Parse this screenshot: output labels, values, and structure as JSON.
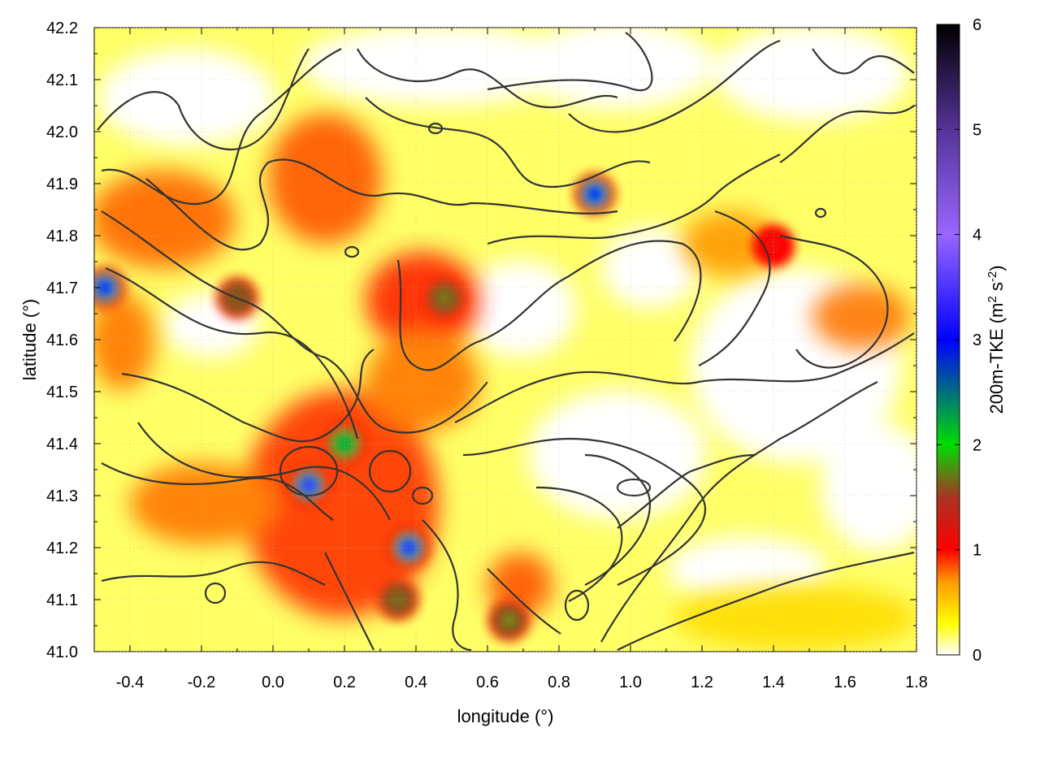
{
  "chart_data": {
    "type": "heatmap",
    "title": "",
    "xlabel": "longitude (°)",
    "ylabel": "latitude (°)",
    "colorbar_label": "200m-TKE (m² s⁻²)",
    "colorbar_label_parts": {
      "main": "200m-TKE (m",
      "sup1": "2",
      "mid": " s",
      "sup2": "-2",
      "end": ")"
    },
    "xlim": [
      -0.5,
      1.8
    ],
    "ylim": [
      41.0,
      42.2
    ],
    "clim": [
      0,
      6
    ],
    "x_ticks": [
      -0.4,
      -0.2,
      0.0,
      0.2,
      0.4,
      0.6,
      0.8,
      1.0,
      1.2,
      1.4,
      1.6,
      1.8
    ],
    "x_tick_labels": [
      "-0.4",
      "-0.2",
      "0.0",
      "0.2",
      "0.4",
      "0.6",
      "0.8",
      "1.0",
      "1.2",
      "1.4",
      "1.6",
      "1.8"
    ],
    "y_ticks": [
      41.0,
      41.1,
      41.2,
      41.3,
      41.4,
      41.5,
      41.6,
      41.7,
      41.8,
      41.9,
      42.0,
      42.1,
      42.2
    ],
    "y_tick_labels": [
      "41.0",
      "41.1",
      "41.2",
      "41.3",
      "41.4",
      "41.5",
      "41.6",
      "41.7",
      "41.8",
      "41.9",
      "42.0",
      "42.1",
      "42.2"
    ],
    "colorbar_ticks": [
      0,
      1,
      2,
      3,
      4,
      5,
      6
    ],
    "colorbar_tick_labels": [
      "0",
      "1",
      "2",
      "3",
      "4",
      "5",
      "6"
    ],
    "colormap": [
      {
        "v": 0.0,
        "color": "#ffffff"
      },
      {
        "v": 0.3,
        "color": "#ffff00"
      },
      {
        "v": 0.7,
        "color": "#ff9900"
      },
      {
        "v": 1.0,
        "color": "#ff0000"
      },
      {
        "v": 1.5,
        "color": "#aa3322"
      },
      {
        "v": 2.0,
        "color": "#00dd00"
      },
      {
        "v": 3.0,
        "color": "#0000ff"
      },
      {
        "v": 4.0,
        "color": "#9966ff"
      },
      {
        "v": 5.0,
        "color": "#553399"
      },
      {
        "v": 6.0,
        "color": "#000000"
      }
    ],
    "grid": true,
    "contours": true,
    "tke_hotspots": [
      {
        "lon": 0.1,
        "lat": 41.32,
        "value": 3.8
      },
      {
        "lon": 0.38,
        "lat": 41.2,
        "value": 3.6
      },
      {
        "lon": 0.48,
        "lat": 41.68,
        "value": 1.9
      },
      {
        "lon": -0.47,
        "lat": 41.7,
        "value": 3.2
      },
      {
        "lon": 0.9,
        "lat": 41.88,
        "value": 3.0
      },
      {
        "lon": 0.2,
        "lat": 41.4,
        "value": 2.2
      },
      {
        "lon": 0.66,
        "lat": 41.06,
        "value": 2.0
      },
      {
        "lon": 0.35,
        "lat": 41.1,
        "value": 1.8
      },
      {
        "lon": -0.1,
        "lat": 41.68,
        "value": 1.6
      },
      {
        "lon": 1.4,
        "lat": 41.78,
        "value": 1.5
      }
    ]
  }
}
